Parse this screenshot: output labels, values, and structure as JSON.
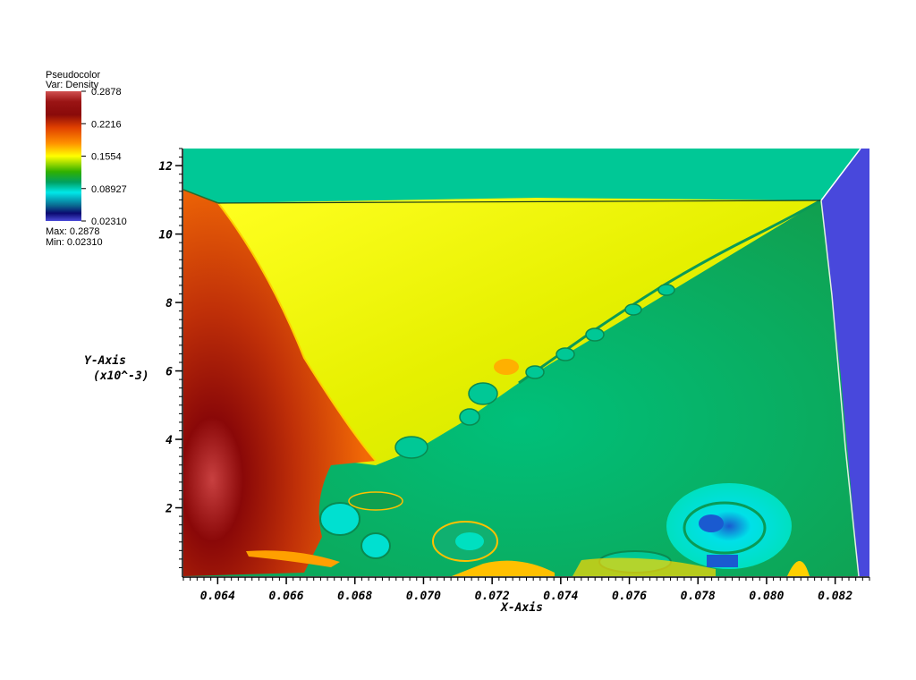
{
  "chart_data": {
    "type": "heatmap",
    "legend": {
      "title": "Pseudocolor",
      "variable": "Var: Density",
      "ticks": [
        "0.2878",
        "0.2216",
        "0.1554",
        "0.08927",
        "0.02310"
      ],
      "max_label": "Max:  0.2878",
      "min_label": "Min:  0.02310",
      "colormap": [
        "#d04848",
        "#8b0000",
        "#ff6a00",
        "#ffff00",
        "#00a000",
        "#00e0e0",
        "#0a0a7a",
        "#4040d0"
      ]
    },
    "xlabel": "X-Axis",
    "ylabel": "Y-Axis",
    "ylabel_scale": "(x10^-3)",
    "xlim": [
      0.063,
      0.083
    ],
    "ylim": [
      0,
      12.5
    ],
    "x_ticks": [
      0.064,
      0.066,
      0.068,
      0.07,
      0.072,
      0.074,
      0.076,
      0.078,
      0.08,
      0.082
    ],
    "x_tick_labels": [
      "0.064",
      "0.066",
      "0.068",
      "0.070",
      "0.072",
      "0.074",
      "0.076",
      "0.078",
      "0.080",
      "0.082"
    ],
    "y_ticks": [
      2,
      4,
      6,
      8,
      10,
      12
    ],
    "y_tick_labels": [
      "2",
      "4",
      "6",
      "8",
      "10",
      "12"
    ],
    "field_colors": {
      "ambient": "#00c896",
      "shocked_gas": "#d8f000",
      "dense_region": "#e24e0a",
      "core": "#8b0a0a",
      "inflow": "#4848dc",
      "mixing_layer": "#0a9a56",
      "low_density": "#00e8e8"
    }
  }
}
